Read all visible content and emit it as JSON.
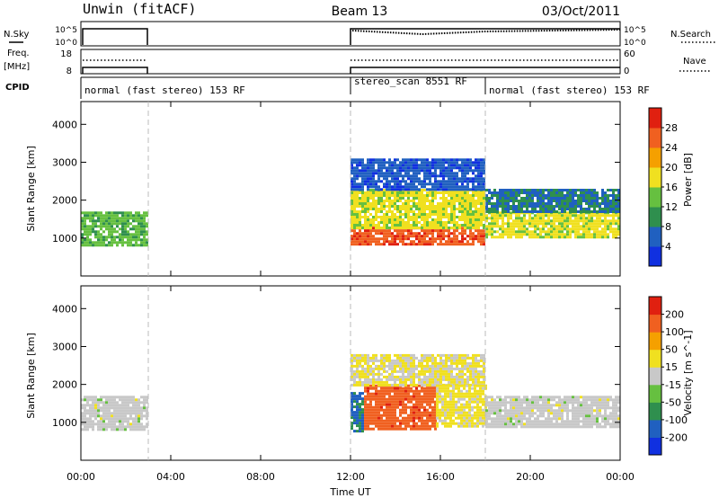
{
  "header": {
    "station": "Unwin (fitACF)",
    "beam": "Beam 13",
    "date": "03/Oct/2011"
  },
  "panel_labels": {
    "nsky": "N.Sky",
    "nsearch": "N.Search",
    "freq_line1": "Freq.",
    "freq_line2": "[MHz]",
    "nave": "Nave",
    "cpid": "CPID"
  },
  "small_ticks": {
    "nsky_top": "10^5",
    "nsky_bottom": "10^0",
    "nsearch_top": "10^5",
    "nsearch_bottom": "10^0",
    "freq_top": "18",
    "freq_bottom": "8",
    "nave_top": "60",
    "nave_bottom": "0"
  },
  "cpid_segments": [
    {
      "label": "normal (fast stereo) 153 RF",
      "start_h": 0,
      "end_h": 3
    },
    {
      "label": "stereo_scan 8551 RF",
      "start_h": 12,
      "end_h": 18
    },
    {
      "label": "normal (fast stereo) 153 RF",
      "start_h": 18,
      "end_h": 24
    }
  ],
  "colors": {
    "power_scale": [
      "#1030e0",
      "#2060c0",
      "#2f8f4e",
      "#66c040",
      "#f0e020",
      "#f5a000",
      "#f06020",
      "#e02010"
    ],
    "velocity_scale": [
      "#1030e0",
      "#2060c0",
      "#2f8f4e",
      "#66c040",
      "#c8c8c8",
      "#f0e020",
      "#f5a000",
      "#f06020",
      "#e02010"
    ]
  },
  "chart_data": [
    {
      "type": "heatmap",
      "name": "Power",
      "xlabel": "Time UT",
      "ylabel": "Slant Range [km]",
      "xlim": [
        0,
        24
      ],
      "ylim": [
        0,
        4600
      ],
      "yticks": [
        1000,
        2000,
        3000,
        4000
      ],
      "ytick_labels": [
        "1000",
        "2000",
        "3000",
        "4000"
      ],
      "colorbar_label": "Power [dB]",
      "colorbar_ticks": [
        "4",
        "8",
        "12",
        "16",
        "20",
        "24",
        "28"
      ],
      "vmin": 0,
      "vmax": 32,
      "regions": [
        {
          "x": [
            0.0,
            2.9
          ],
          "y": [
            800,
            1700
          ],
          "value": 13
        },
        {
          "x": [
            12.0,
            18.0
          ],
          "y": [
            850,
            1300
          ],
          "value": 27
        },
        {
          "x": [
            12.0,
            18.0
          ],
          "y": [
            1300,
            2300
          ],
          "value": 17
        },
        {
          "x": [
            12.0,
            18.0
          ],
          "y": [
            2300,
            3100
          ],
          "value": 5
        },
        {
          "x": [
            18.0,
            24.0
          ],
          "y": [
            1000,
            1700
          ],
          "value": 17
        },
        {
          "x": [
            18.0,
            24.0
          ],
          "y": [
            1700,
            2300
          ],
          "value": 8
        }
      ]
    },
    {
      "type": "heatmap",
      "name": "Velocity",
      "xlabel": "Time UT",
      "ylabel": "Slant Range [km]",
      "xlim": [
        0,
        24
      ],
      "ylim": [
        0,
        4600
      ],
      "yticks": [
        1000,
        2000,
        3000,
        4000
      ],
      "ytick_labels": [
        "1000",
        "2000",
        "3000",
        "4000"
      ],
      "colorbar_label": "Velocity [m s^-1]",
      "colorbar_ticks": [
        "-200",
        "-100",
        "-50",
        "-15",
        "15",
        "50",
        "100",
        "200"
      ],
      "vmin": -250,
      "vmax": 250,
      "regions": [
        {
          "x": [
            0.0,
            2.9
          ],
          "y": [
            800,
            1700
          ],
          "value": 0
        },
        {
          "x": [
            12.0,
            12.6
          ],
          "y": [
            800,
            1800
          ],
          "value": -150
        },
        {
          "x": [
            12.6,
            15.8
          ],
          "y": [
            850,
            2000
          ],
          "value": 170
        },
        {
          "x": [
            12.0,
            18.0
          ],
          "y": [
            2000,
            2800
          ],
          "value": 30
        },
        {
          "x": [
            15.8,
            18.0
          ],
          "y": [
            900,
            2000
          ],
          "value": 40
        },
        {
          "x": [
            18.0,
            24.0
          ],
          "y": [
            850,
            1700
          ],
          "value": 0
        }
      ]
    }
  ],
  "x_axis": {
    "label": "Time UT",
    "ticks": [
      0,
      4,
      8,
      12,
      16,
      20,
      24
    ],
    "tick_labels": [
      "00:00",
      "04:00",
      "08:00",
      "12:00",
      "16:00",
      "20:00",
      "00:00"
    ]
  }
}
